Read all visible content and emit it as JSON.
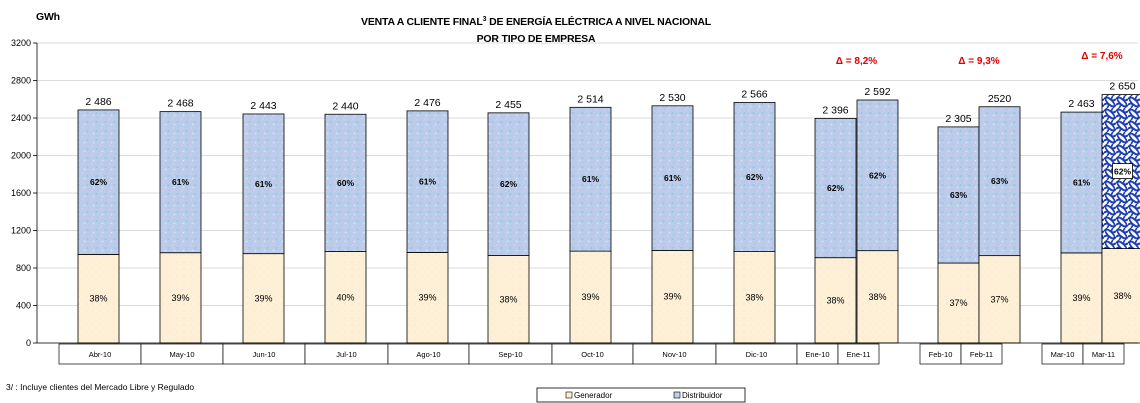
{
  "chart_data": {
    "type": "bar",
    "stacked": true,
    "title_line1": "VENTA A CLIENTE FINAL",
    "title_superscript": "3",
    "title_line1_rest": " DE ENERGÍA ELÉCTRICA A NIVEL NACIONAL",
    "title_line2": "POR TIPO DE EMPRESA",
    "ylabel": "GWh",
    "ylim": [
      0,
      3200
    ],
    "yticks": [
      "0",
      "400",
      "800",
      "1200",
      "1600",
      "2000",
      "2400",
      "2800",
      "3200"
    ],
    "footnote": "3/ : Incluye clientes del Mercado Libre y Regulado",
    "legend": [
      "Generador",
      "Distribuidor"
    ],
    "series_names": [
      "Generador",
      "Distribuidor"
    ],
    "bars": [
      {
        "cat": "Abr-10",
        "total": 2486,
        "total_label": "2 486",
        "gen": 945,
        "gen_pct": "38%",
        "dist_pct": "62%"
      },
      {
        "cat": "May-10",
        "total": 2468,
        "total_label": "2 468",
        "gen": 963,
        "gen_pct": "39%",
        "dist_pct": "61%"
      },
      {
        "cat": "Jun-10",
        "total": 2443,
        "total_label": "2 443",
        "gen": 953,
        "gen_pct": "39%",
        "dist_pct": "61%"
      },
      {
        "cat": "Jul-10",
        "total": 2440,
        "total_label": "2 440",
        "gen": 976,
        "gen_pct": "40%",
        "dist_pct": "60%"
      },
      {
        "cat": "Ago-10",
        "total": 2476,
        "total_label": "2 476",
        "gen": 966,
        "gen_pct": "39%",
        "dist_pct": "61%"
      },
      {
        "cat": "Sep-10",
        "total": 2455,
        "total_label": "2 455",
        "gen": 933,
        "gen_pct": "38%",
        "dist_pct": "62%"
      },
      {
        "cat": "Oct-10",
        "total": 2514,
        "total_label": "2 514",
        "gen": 980,
        "gen_pct": "39%",
        "dist_pct": "61%"
      },
      {
        "cat": "Nov-10",
        "total": 2530,
        "total_label": "2 530",
        "gen": 987,
        "gen_pct": "39%",
        "dist_pct": "61%"
      },
      {
        "cat": "Dic-10",
        "total": 2566,
        "total_label": "2 566",
        "gen": 975,
        "gen_pct": "38%",
        "dist_pct": "62%"
      },
      {
        "cat": "Ene-10",
        "total": 2396,
        "total_label": "2 396",
        "gen": 910,
        "gen_pct": "38%",
        "dist_pct": "62%"
      },
      {
        "cat": "Ene-11",
        "total": 2592,
        "total_label": "2 592",
        "gen": 985,
        "gen_pct": "38%",
        "dist_pct": "62%"
      },
      {
        "cat": "Feb-10",
        "total": 2305,
        "total_label": "2 305",
        "gen": 853,
        "gen_pct": "37%",
        "dist_pct": "63%"
      },
      {
        "cat": "Feb-11",
        "total": 2520,
        "total_label": "2520",
        "gen": 932,
        "gen_pct": "37%",
        "dist_pct": "63%"
      },
      {
        "cat": "Mar-10",
        "total": 2463,
        "total_label": "2 463",
        "gen": 961,
        "gen_pct": "39%",
        "dist_pct": "61%"
      },
      {
        "cat": "Mar-11",
        "total": 2650,
        "total_label": "2 650",
        "gen": 1007,
        "gen_pct": "38%",
        "dist_pct": "62%",
        "highlight": true
      }
    ],
    "deltas": [
      {
        "label": "Δ = 8,2%",
        "between": [
          "Ene-10",
          "Ene-11"
        ]
      },
      {
        "label": "Δ = 9,3%",
        "between": [
          "Feb-10",
          "Feb-11"
        ]
      },
      {
        "label": "Δ = 7,6%",
        "between": [
          "Mar-10",
          "Mar-11"
        ]
      }
    ],
    "colors": {
      "generador": "#fdf0d5",
      "distribuidor": "#b7cdec",
      "highlight_dist": "#1f3fb0",
      "delta": "#e00000"
    }
  }
}
